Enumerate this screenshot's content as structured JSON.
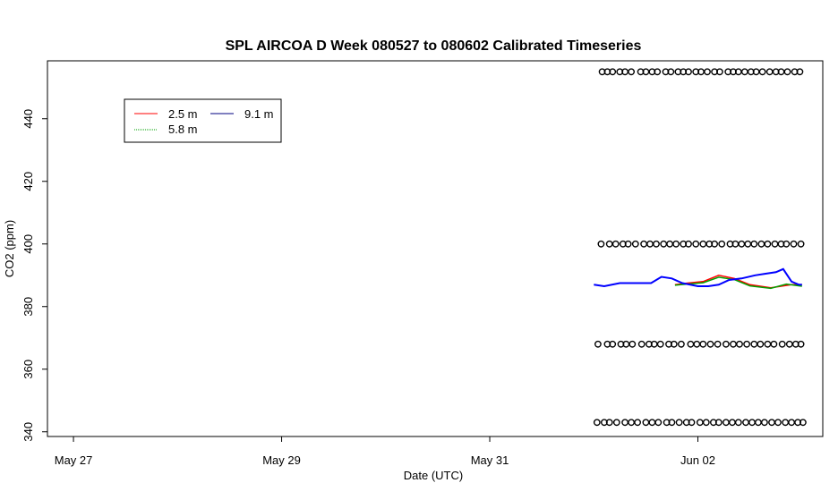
{
  "chart_data": {
    "type": "line",
    "title": "SPL AIRCOA D  Week 080527 to 080602  Calibrated Timeseries",
    "xlabel": "Date (UTC)",
    "ylabel": "CO2 (ppm)",
    "x_tick_labels": [
      "May 27",
      "May 29",
      "May 31",
      "Jun 02"
    ],
    "x_tick_days": [
      0,
      2,
      4,
      6
    ],
    "xlim_days": [
      -0.25,
      7.2
    ],
    "ylim": [
      338.5,
      458.5
    ],
    "y_ticks": [
      340,
      360,
      380,
      400,
      420,
      440
    ],
    "grid": false,
    "legend": {
      "placement": "top-left",
      "entries": [
        {
          "label": "2.5 m",
          "color": "#ff0000"
        },
        {
          "label": "5.8 m",
          "color": "#00a000"
        },
        {
          "label": "9.1 m",
          "color": "#0000ff"
        }
      ]
    },
    "series": [
      {
        "name": "2.5 m",
        "color": "#ff0000",
        "x_days": [
          5.78,
          5.9,
          6.05,
          6.2,
          6.35,
          6.5,
          6.7,
          6.9,
          7.0
        ],
        "values": [
          387,
          387.5,
          388,
          390,
          389,
          387,
          386,
          387,
          387
        ]
      },
      {
        "name": "5.8 m",
        "color": "#00a000",
        "x_days": [
          5.78,
          5.9,
          6.05,
          6.2,
          6.35,
          6.5,
          6.7,
          6.85,
          7.0
        ],
        "values": [
          386.8,
          387.2,
          387.6,
          389.4,
          388.6,
          386.6,
          385.8,
          387.2,
          386.5
        ]
      },
      {
        "name": "9.1 m",
        "color": "#0000ff",
        "x_days": [
          5.0,
          5.1,
          5.25,
          5.4,
          5.55,
          5.65,
          5.75,
          5.85,
          6.0,
          6.1,
          6.2,
          6.3,
          6.42,
          6.55,
          6.65,
          6.75,
          6.82,
          6.9,
          6.97,
          7.0
        ],
        "values": [
          387,
          386.5,
          387.5,
          387.5,
          387.5,
          389.5,
          389,
          387.5,
          386.5,
          386.5,
          387,
          388.5,
          389,
          390,
          390.5,
          391,
          392,
          388,
          387,
          387
        ]
      }
    ],
    "calibration_points": [
      {
        "value": 455,
        "x_days": [
          5.08,
          5.13,
          5.18,
          5.25,
          5.3,
          5.36,
          5.45,
          5.5,
          5.56,
          5.61,
          5.69,
          5.74,
          5.81,
          5.86,
          5.91,
          5.98,
          6.03,
          6.09,
          6.16,
          6.21,
          6.29,
          6.34,
          6.39,
          6.45,
          6.51,
          6.56,
          6.62,
          6.69,
          6.75,
          6.8,
          6.86,
          6.93,
          6.98
        ]
      },
      {
        "value": 400,
        "x_days": [
          5.07,
          5.15,
          5.21,
          5.28,
          5.33,
          5.4,
          5.48,
          5.54,
          5.6,
          5.67,
          5.73,
          5.79,
          5.86,
          5.91,
          5.98,
          6.05,
          6.11,
          6.16,
          6.23,
          6.31,
          6.36,
          6.42,
          6.48,
          6.54,
          6.61,
          6.67,
          6.74,
          6.8,
          6.85,
          6.92,
          6.99
        ]
      },
      {
        "value": 368,
        "x_days": [
          5.04,
          5.13,
          5.18,
          5.26,
          5.31,
          5.37,
          5.46,
          5.53,
          5.58,
          5.64,
          5.72,
          5.77,
          5.84,
          5.93,
          5.99,
          6.05,
          6.12,
          6.19,
          6.27,
          6.34,
          6.4,
          6.47,
          6.54,
          6.6,
          6.67,
          6.73,
          6.81,
          6.88,
          6.94,
          6.99
        ]
      },
      {
        "value": 343,
        "x_days": [
          5.03,
          5.1,
          5.15,
          5.22,
          5.3,
          5.36,
          5.42,
          5.5,
          5.56,
          5.62,
          5.7,
          5.75,
          5.82,
          5.89,
          5.94,
          6.02,
          6.08,
          6.15,
          6.2,
          6.27,
          6.33,
          6.39,
          6.46,
          6.52,
          6.58,
          6.64,
          6.71,
          6.77,
          6.84,
          6.9,
          6.96,
          7.01
        ]
      }
    ]
  }
}
